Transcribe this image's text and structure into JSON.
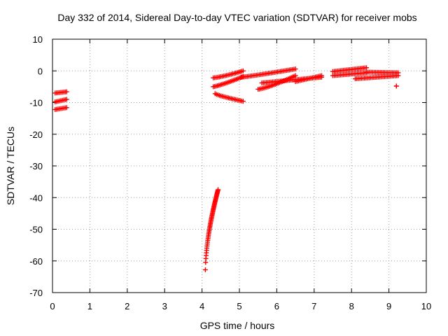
{
  "chart_data": {
    "type": "scatter",
    "title": "Day 332 of 2014, Sidereal Day-to-day VTEC variation (SDTVAR) for receiver mobs",
    "xlabel": "GPS time / hours",
    "ylabel": "SDTVAR / TECUs",
    "xlim": [
      0,
      10
    ],
    "ylim": [
      -70,
      10
    ],
    "x_ticks": [
      0,
      1,
      2,
      3,
      4,
      5,
      6,
      7,
      8,
      9,
      10
    ],
    "y_ticks": [
      -70,
      -60,
      -50,
      -40,
      -30,
      -20,
      -10,
      0,
      10
    ],
    "grid": true,
    "marker": "+",
    "color": "#ff0000",
    "segments": [
      {
        "x0": 0.07,
        "y0": -7.0,
        "x1": 0.38,
        "y1": -6.6
      },
      {
        "x0": 0.07,
        "y0": -9.8,
        "x1": 0.38,
        "y1": -9.0
      },
      {
        "x0": 0.07,
        "y0": -12.2,
        "x1": 0.38,
        "y1": -11.6
      },
      {
        "x0": 4.09,
        "y0": -62.8,
        "x1": 4.43,
        "y1": -37.5,
        "curve": 0.6
      },
      {
        "x0": 4.3,
        "y0": -2.2,
        "x1": 5.1,
        "y1": 0.0,
        "curve": 1.3
      },
      {
        "x0": 4.3,
        "y0": -5.0,
        "x1": 5.1,
        "y1": -1.8,
        "curve": 1.2
      },
      {
        "x0": 4.35,
        "y0": -7.2,
        "x1": 5.1,
        "y1": -9.6,
        "curve": 0.8
      },
      {
        "x0": 5.05,
        "y0": -2.0,
        "x1": 6.5,
        "y1": 0.6,
        "curve": 1.1
      },
      {
        "x0": 5.5,
        "y0": -5.8,
        "x1": 6.5,
        "y1": -1.5,
        "curve": 1.3
      },
      {
        "x0": 5.6,
        "y0": -3.8,
        "x1": 7.2,
        "y1": -2.0,
        "curve": 1.0
      },
      {
        "x0": 6.5,
        "y0": -3.4,
        "x1": 7.2,
        "y1": -1.5,
        "curve": 1.0
      },
      {
        "x0": 7.5,
        "y0": -0.2,
        "x1": 8.4,
        "y1": 1.0,
        "curve": 1.0
      },
      {
        "x0": 7.5,
        "y0": -1.5,
        "x1": 8.4,
        "y1": -0.6,
        "curve": 1.0
      },
      {
        "x0": 8.1,
        "y0": -2.5,
        "x1": 9.25,
        "y1": -1.5,
        "curve": 1.0
      },
      {
        "x0": 8.4,
        "y0": -0.4,
        "x1": 9.25,
        "y1": -0.6,
        "curve": 1.0
      },
      {
        "x0": 9.2,
        "y0": -4.8,
        "x1": 9.2,
        "y1": -4.8
      }
    ]
  }
}
